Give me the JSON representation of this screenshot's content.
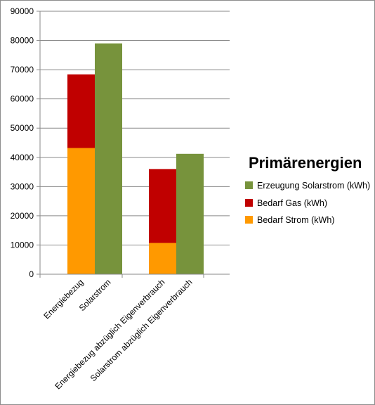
{
  "chart_data": {
    "type": "bar",
    "stacked": true,
    "ylim": [
      0,
      90000
    ],
    "yticks": [
      "0",
      "10000",
      "20000",
      "30000",
      "40000",
      "50000",
      "60000",
      "70000",
      "80000",
      "90000"
    ],
    "grid": true,
    "legend_position": "right",
    "legend_title": "Primärenergien",
    "categories": [
      "Energiebezug",
      "Solarstrom",
      "Energiebezug abzüglich Eigenverbrauch",
      "Solarstrom abzüglich Eigenverbrauch"
    ],
    "series": [
      {
        "name": "Bedarf  Strom (kWh)",
        "color": "#ff9900",
        "values": [
          43200,
          0,
          10700,
          0
        ]
      },
      {
        "name": "Bedarf Gas (kWh)",
        "color": "#c00000",
        "values": [
          25200,
          0,
          25300,
          0
        ]
      },
      {
        "name": "Erzeugung Solarstrom (kWh)",
        "color": "#77933c",
        "values": [
          0,
          79000,
          0,
          41200
        ]
      }
    ],
    "legend_order": [
      2,
      1,
      0
    ]
  }
}
